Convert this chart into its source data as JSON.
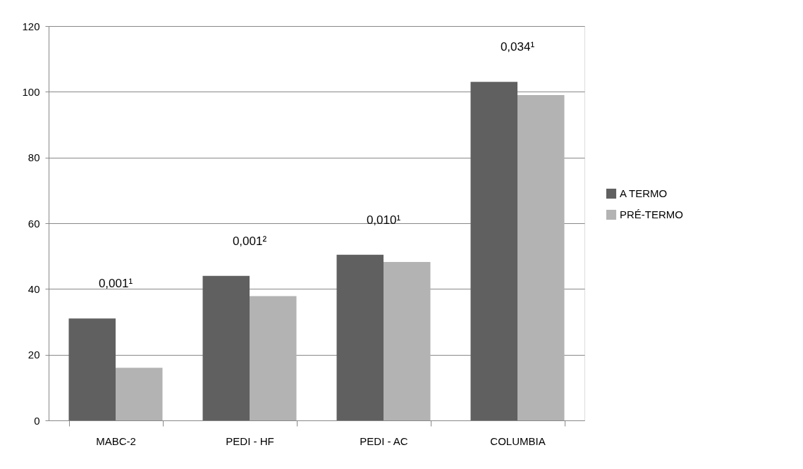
{
  "chart_data": {
    "type": "bar",
    "categories": [
      "MABC-2",
      "PEDI - HF",
      "PEDI - AC",
      "COLUMBIA"
    ],
    "series": [
      {
        "name": "A TERMO",
        "color": "#606060",
        "values": [
          31,
          44,
          50.4,
          103
        ]
      },
      {
        "name": "PRÉ-TERMO",
        "color": "#b3b3b3",
        "values": [
          16,
          37.8,
          48.2,
          99
        ]
      }
    ],
    "ylim": [
      0,
      120
    ],
    "yticks": [
      0,
      20,
      40,
      60,
      80,
      100,
      120
    ],
    "grid": "y",
    "legend": "right",
    "annotations": [
      "0,001¹",
      "0,001²",
      "0,010¹",
      "0,034¹"
    ]
  }
}
